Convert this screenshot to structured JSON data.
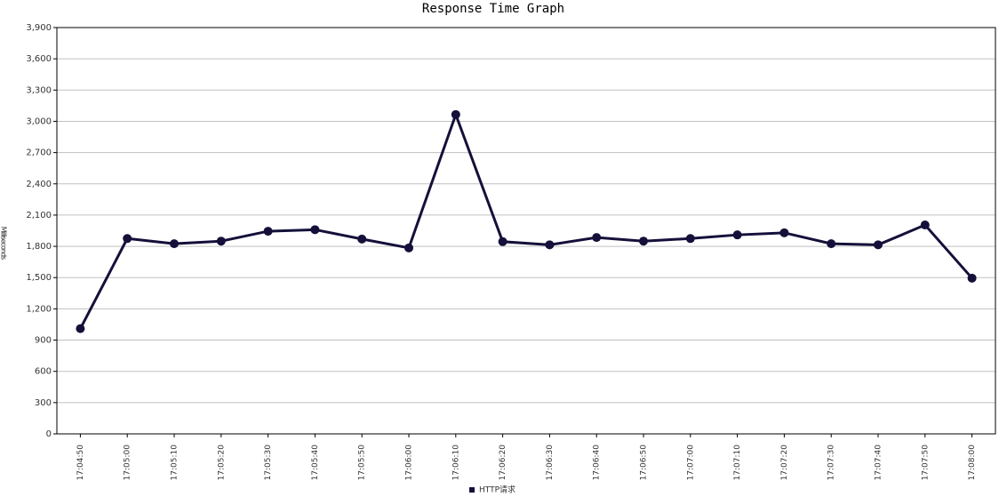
{
  "chart_data": {
    "type": "line",
    "title": "Response Time Graph",
    "y_label": "Milliseconds",
    "categories": [
      "17:04:50",
      "17:05:00",
      "17:05:10",
      "17:05:20",
      "17:05:30",
      "17:05:40",
      "17:05:50",
      "17:06:00",
      "17:06:10",
      "17:06:20",
      "17:06:30",
      "17:06:40",
      "17:06:50",
      "17:07:00",
      "17:07:10",
      "17:07:20",
      "17:07:30",
      "17:07:40",
      "17:07:50",
      "17:08:00"
    ],
    "series": [
      {
        "name": "HTTP请求",
        "color": "#14103a",
        "values": [
          1010,
          1875,
          1825,
          1850,
          1945,
          1960,
          1870,
          1785,
          3065,
          1845,
          1815,
          1885,
          1850,
          1875,
          1910,
          1930,
          1825,
          1815,
          2005,
          1495
        ]
      }
    ],
    "ylim": [
      0,
      3900
    ],
    "yticks": [
      0,
      300,
      600,
      900,
      {
        "value": 1200,
        "label": "1,200"
      },
      {
        "value": 1500,
        "label": "1,500"
      },
      {
        "value": 1800,
        "label": "1,800"
      },
      {
        "value": 2100,
        "label": "2,100"
      },
      {
        "value": 2400,
        "label": "2,400"
      },
      {
        "value": 2700,
        "label": "2,700"
      },
      {
        "value": 3000,
        "label": "3,000"
      },
      {
        "value": 3300,
        "label": "3,300"
      },
      {
        "value": 3600,
        "label": "3,600"
      },
      {
        "value": 3900,
        "label": "3,900"
      }
    ],
    "grid": true,
    "legend": "bottom"
  }
}
